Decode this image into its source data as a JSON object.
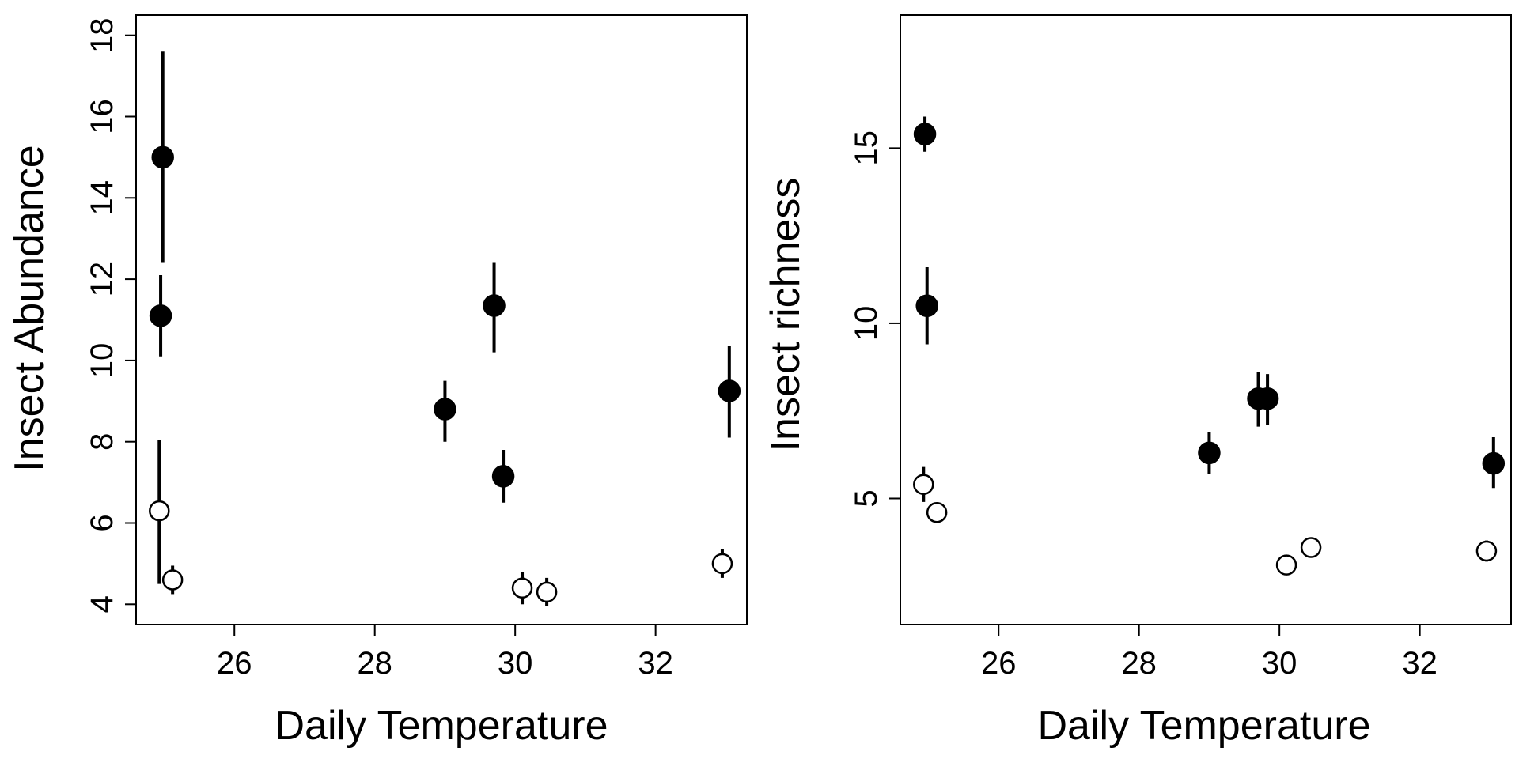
{
  "chart_data": [
    {
      "type": "scatter",
      "xlabel": "Daily Temperature",
      "ylabel": "Insect Abundance",
      "xlim": [
        24.6,
        33.3
      ],
      "ylim": [
        3.5,
        18.5
      ],
      "xticks": [
        26,
        28,
        30,
        32
      ],
      "yticks": [
        4,
        6,
        8,
        10,
        12,
        14,
        16,
        18
      ],
      "grid": false,
      "series": [
        {
          "marker": "filled-circle",
          "points": [
            {
              "x": 24.98,
              "y": 15.0,
              "lo": 12.4,
              "hi": 17.6
            },
            {
              "x": 24.95,
              "y": 11.1,
              "lo": 10.1,
              "hi": 12.1
            },
            {
              "x": 29.0,
              "y": 8.8,
              "lo": 8.0,
              "hi": 9.5
            },
            {
              "x": 29.7,
              "y": 11.35,
              "lo": 10.2,
              "hi": 12.4
            },
            {
              "x": 29.83,
              "y": 7.15,
              "lo": 6.5,
              "hi": 7.8
            },
            {
              "x": 33.05,
              "y": 9.25,
              "lo": 8.1,
              "hi": 10.35
            }
          ]
        },
        {
          "marker": "open-circle",
          "points": [
            {
              "x": 24.93,
              "y": 6.3,
              "lo": 4.5,
              "hi": 8.05
            },
            {
              "x": 25.12,
              "y": 4.6,
              "lo": 4.25,
              "hi": 4.95
            },
            {
              "x": 30.1,
              "y": 4.4,
              "lo": 4.0,
              "hi": 4.8
            },
            {
              "x": 30.45,
              "y": 4.3,
              "lo": 3.95,
              "hi": 4.65
            },
            {
              "x": 32.95,
              "y": 5.0,
              "lo": 4.65,
              "hi": 5.35
            }
          ]
        }
      ]
    },
    {
      "type": "scatter",
      "xlabel": "Daily Temperature",
      "ylabel": "Insect richness",
      "xlim": [
        24.6,
        33.3
      ],
      "ylim": [
        1.4,
        18.8
      ],
      "xticks": [
        26,
        28,
        30,
        32
      ],
      "yticks": [
        5,
        10,
        15
      ],
      "grid": false,
      "series": [
        {
          "marker": "filled-circle",
          "points": [
            {
              "x": 24.95,
              "y": 15.4,
              "lo": 14.9,
              "hi": 15.9
            },
            {
              "x": 24.98,
              "y": 10.5,
              "lo": 9.4,
              "hi": 11.6
            },
            {
              "x": 29.0,
              "y": 6.3,
              "lo": 5.7,
              "hi": 6.9
            },
            {
              "x": 29.7,
              "y": 7.85,
              "lo": 7.05,
              "hi": 8.6
            },
            {
              "x": 29.83,
              "y": 7.85,
              "lo": 7.1,
              "hi": 8.55
            },
            {
              "x": 33.05,
              "y": 6.0,
              "lo": 5.3,
              "hi": 6.75
            }
          ]
        },
        {
          "marker": "open-circle",
          "points": [
            {
              "x": 24.93,
              "y": 5.4,
              "lo": 4.9,
              "hi": 5.9
            },
            {
              "x": 25.12,
              "y": 4.6,
              "lo": 4.6,
              "hi": 4.6
            },
            {
              "x": 30.1,
              "y": 3.1,
              "lo": 3.1,
              "hi": 3.1
            },
            {
              "x": 30.45,
              "y": 3.6,
              "lo": 3.6,
              "hi": 3.6
            },
            {
              "x": 32.95,
              "y": 3.5,
              "lo": 3.2,
              "hi": 3.8
            }
          ]
        }
      ]
    }
  ]
}
